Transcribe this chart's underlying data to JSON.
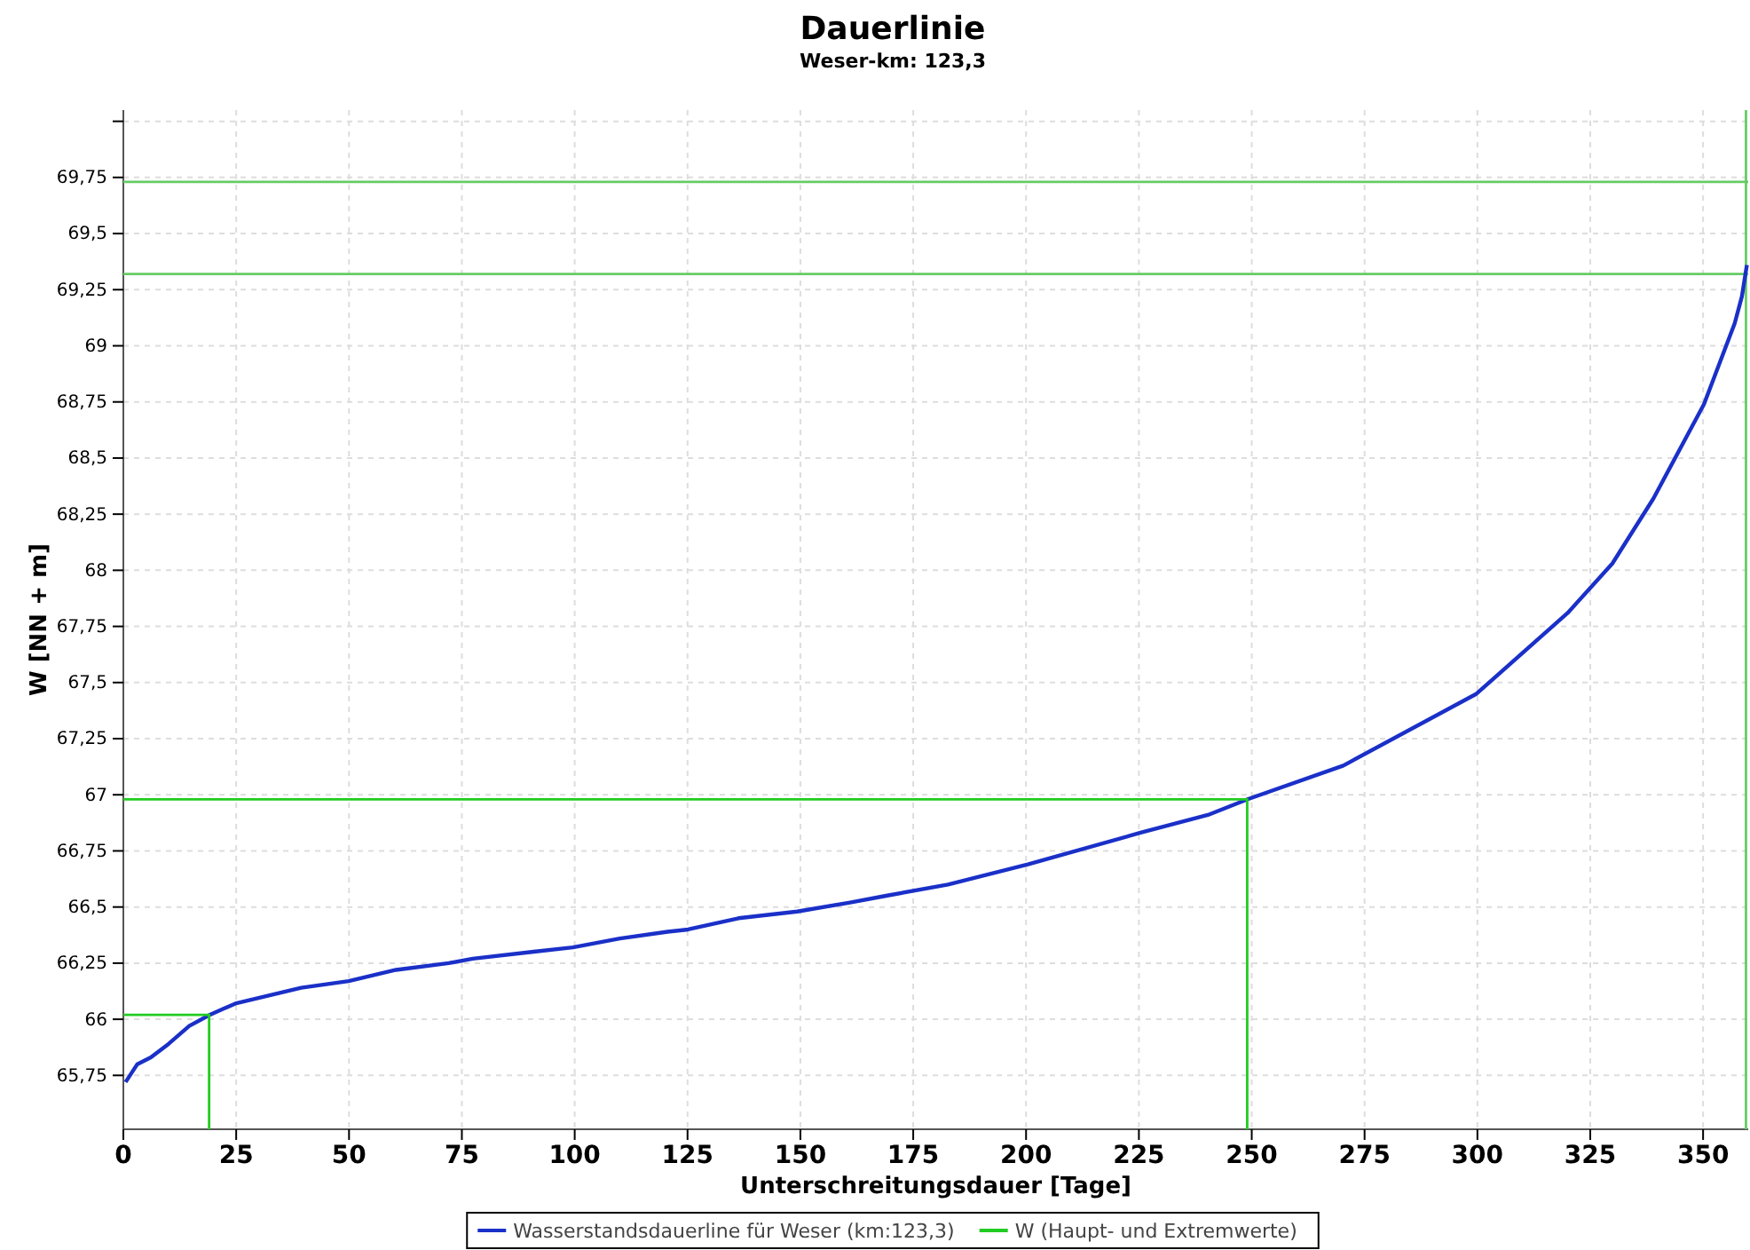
{
  "chart_data": {
    "type": "line",
    "title": "Dauerlinie",
    "subtitle": "Weser-km: 123,3",
    "xlabel": "Unterschreitungsdauer [Tage]",
    "ylabel": "W [NN + m]",
    "xlim": [
      0,
      360
    ],
    "xticks": [
      0,
      25,
      50,
      75,
      100,
      125,
      150,
      175,
      200,
      225,
      250,
      275,
      300,
      325,
      350
    ],
    "ylim": [
      65.51,
      70.05
    ],
    "yticks": [
      {
        "value": 65.75,
        "label": "65,75"
      },
      {
        "value": 66,
        "label": "66"
      },
      {
        "value": 66.25,
        "label": "66,25"
      },
      {
        "value": 66.5,
        "label": "66,5"
      },
      {
        "value": 66.75,
        "label": "66,75"
      },
      {
        "value": 67,
        "label": "67"
      },
      {
        "value": 67.25,
        "label": "67,25"
      },
      {
        "value": 67.5,
        "label": "67,5"
      },
      {
        "value": 67.75,
        "label": "67,75"
      },
      {
        "value": 68,
        "label": "68"
      },
      {
        "value": 68.25,
        "label": "68,25"
      },
      {
        "value": 68.5,
        "label": "68,5"
      },
      {
        "value": 68.75,
        "label": "68,75"
      },
      {
        "value": 69,
        "label": "69"
      },
      {
        "value": 69.25,
        "label": "69,25"
      },
      {
        "value": 69.5,
        "label": "69,5"
      },
      {
        "value": 69.75,
        "label": "69,75"
      },
      {
        "value": 70,
        "label": null
      }
    ],
    "grid": true,
    "legend": "bottom",
    "line_style": "solid",
    "series": [
      {
        "name": "Wasserstandsdauerline für Weser (km:123,3)",
        "color": "#1a30c8",
        "x": [
          0.5,
          3.1,
          6.1,
          10,
          14.6,
          19.2,
          24.8,
          39.4,
          49.9,
          60.4,
          72.1,
          77.4,
          90.5,
          99.6,
          110,
          120.6,
          125.1,
          136.3,
          149.3,
          161,
          169,
          182.7,
          200.4,
          225.2,
          240.3,
          249.1,
          270.3,
          299.8,
          320,
          329.9,
          339,
          350.2,
          357,
          358.6,
          359.7
        ],
        "values": [
          65.72,
          65.8,
          65.83,
          65.89,
          65.97,
          66.02,
          66.07,
          66.14,
          66.17,
          66.22,
          66.25,
          66.27,
          66.3,
          66.32,
          66.36,
          66.39,
          66.4,
          66.45,
          66.48,
          66.52,
          66.55,
          66.6,
          66.69,
          66.83,
          66.91,
          66.98,
          67.13,
          67.45,
          67.81,
          68.03,
          68.32,
          68.74,
          69.1,
          69.22,
          69.36
        ]
      },
      {
        "name": "W (Haupt- und Extremwerte)",
        "color": "#22cc22",
        "x": [
          0,
          19,
          19
        ],
        "values": [
          66.02,
          66.02,
          65.51
        ]
      },
      {
        "color": "#22cc22",
        "x": [
          0,
          249,
          249
        ],
        "values": [
          66.98,
          66.98,
          65.51
        ]
      }
    ],
    "ref_lines": [
      {
        "axis": "y",
        "value": 69.73,
        "color": "#66cc66"
      },
      {
        "axis": "y",
        "value": 69.32,
        "color": "#66cc66"
      },
      {
        "axis": "x",
        "value": 359.5,
        "color": "#66cc66"
      }
    ]
  }
}
